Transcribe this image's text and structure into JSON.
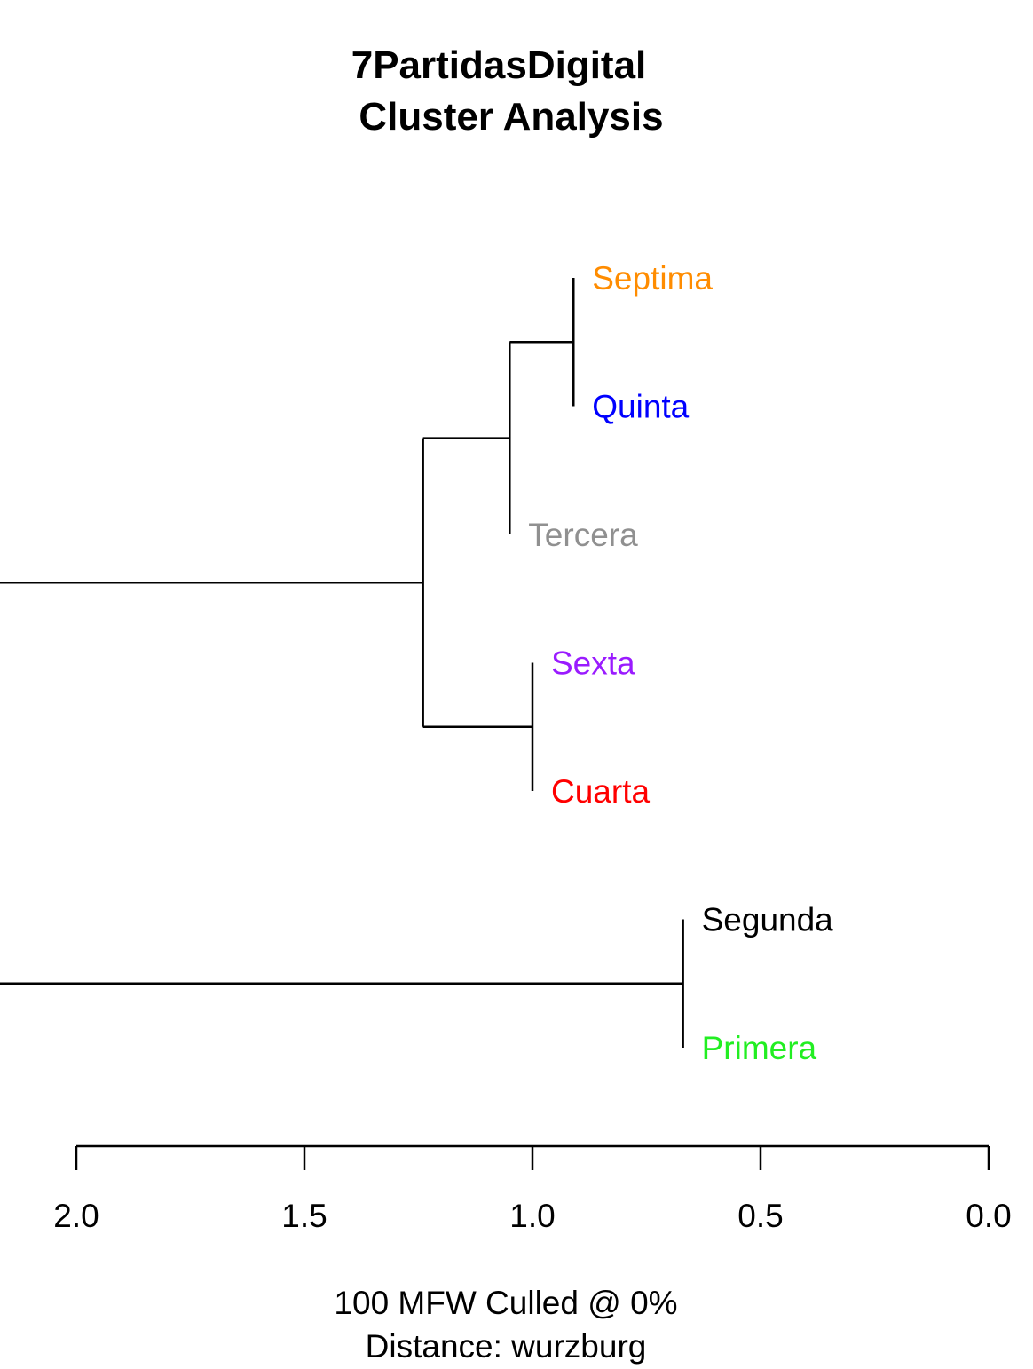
{
  "chart_data": {
    "type": "dendrogram",
    "title_lines": [
      "7PartidasDigital",
      "Cluster Analysis"
    ],
    "caption_lines": [
      "100 MFW  Culled @ 0%",
      "Distance: wurzburg"
    ],
    "axis": {
      "ticks": [
        2.0,
        1.5,
        1.0,
        0.5,
        0.0
      ],
      "tick_labels": [
        "2.0",
        "1.5",
        "1.0",
        "0.5",
        "0.0"
      ],
      "range": [
        2.0,
        0.0
      ]
    },
    "leaves": [
      {
        "label": "Septima",
        "color": "#FF8C00"
      },
      {
        "label": "Quinta",
        "color": "#0000FF"
      },
      {
        "label": "Tercera",
        "color": "#909090"
      },
      {
        "label": "Sexta",
        "color": "#9A1BFF"
      },
      {
        "label": "Cuarta",
        "color": "#FF0000"
      },
      {
        "label": "Segunda",
        "color": "#000000"
      },
      {
        "label": "Primera",
        "color": "#22EE22"
      }
    ],
    "merges": [
      {
        "id": "m1",
        "children": [
          "Septima",
          "Quinta"
        ],
        "height": 0.91
      },
      {
        "id": "m2",
        "children": [
          "m1",
          "Tercera"
        ],
        "height": 1.05
      },
      {
        "id": "m3",
        "children": [
          "Sexta",
          "Cuarta"
        ],
        "height": 1.0
      },
      {
        "id": "m4",
        "children": [
          "m2",
          "m3"
        ],
        "height": 1.24
      },
      {
        "id": "m5",
        "children": [
          "Segunda",
          "Primera"
        ],
        "height": 0.67
      },
      {
        "id": "m6",
        "children": [
          "m4",
          "m5"
        ],
        "height": 2.23
      }
    ]
  }
}
